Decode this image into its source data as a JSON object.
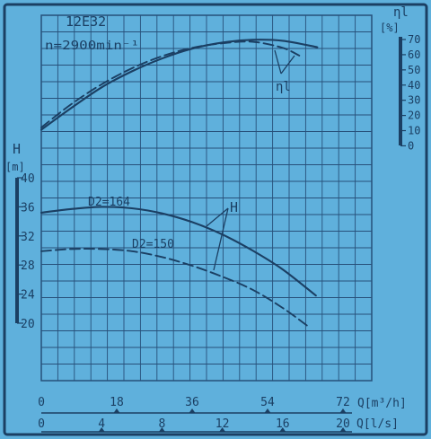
{
  "pump": {
    "model": "12E32",
    "speed": "n=2900min⁻¹"
  },
  "efficiency_axis": {
    "symbol": "ηl",
    "unit": "[%]",
    "ticks": [
      "70",
      "60",
      "50",
      "40",
      "30",
      "20",
      "10",
      "0"
    ]
  },
  "head_axis": {
    "symbol": "H",
    "unit": "[m]",
    "ticks": [
      "40",
      "36",
      "32",
      "28",
      "24",
      "20"
    ]
  },
  "flow_axis_m3h": {
    "ticks": [
      "0",
      "18",
      "36",
      "54",
      "72"
    ],
    "label": "Q[m³/h]"
  },
  "flow_axis_ls": {
    "ticks": [
      "0",
      "4",
      "8",
      "12",
      "16",
      "20"
    ],
    "label": "Q[l/s]"
  },
  "annotations": {
    "d164": "D2=164",
    "d150": "D2=150",
    "head_label": "H",
    "eff_label": "ηl"
  },
  "colors": {
    "background": "#5fb0dc",
    "ink": "#1b3f63",
    "grid": "#27507a"
  },
  "chart_data": {
    "type": "line",
    "x_unit": "Q [l/s]",
    "xlim": [
      0,
      20
    ],
    "head_ylim": [
      20,
      40
    ],
    "efficiency_ylim": [
      0,
      70
    ],
    "series": [
      {
        "name": "D2=164",
        "quantity": "H",
        "style": "solid",
        "x": [
          0,
          2,
          4,
          6,
          8,
          10,
          12,
          14,
          16,
          18.2
        ],
        "y": [
          35.2,
          35.7,
          36.0,
          35.8,
          35.1,
          33.9,
          32.2,
          30.0,
          27.4,
          23.8
        ]
      },
      {
        "name": "D2=150",
        "quantity": "H",
        "style": "dashed",
        "x": [
          0,
          2,
          4,
          6,
          8,
          10,
          12,
          14,
          16,
          17.8
        ],
        "y": [
          29.9,
          30.2,
          30.2,
          29.9,
          29.1,
          27.9,
          26.4,
          24.6,
          22.1,
          19.4
        ]
      },
      {
        "quantity": "η",
        "style": "solid",
        "x": [
          0,
          2,
          4,
          6,
          8,
          10,
          12,
          14,
          16,
          18.3
        ],
        "y": [
          10.6,
          25.0,
          38.5,
          49.0,
          57.5,
          64.0,
          68.0,
          69.8,
          69.2,
          64.9
        ]
      },
      {
        "quantity": "η",
        "style": "dashed",
        "x": [
          0,
          2,
          4,
          6,
          8,
          10,
          12,
          14,
          16,
          17.1
        ],
        "y": [
          12.1,
          27.5,
          40.5,
          51.0,
          59.0,
          64.5,
          67.5,
          68.5,
          64.5,
          59.4
        ]
      }
    ]
  }
}
